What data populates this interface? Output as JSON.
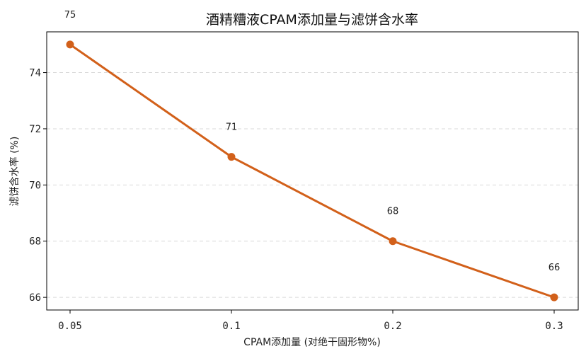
{
  "chart_data": {
    "type": "line",
    "title": "酒精糟液CPAM添加量与滤饼含水率",
    "xlabel": "CPAM添加量 (对绝干固形物%)",
    "ylabel": "滤饼含水率 (%)",
    "categories": [
      "0.05",
      "0.1",
      "0.2",
      "0.3"
    ],
    "series": [
      {
        "values": [
          75,
          71,
          68,
          66
        ],
        "color": "#d2601a"
      }
    ],
    "data_labels": [
      "75",
      "71",
      "68",
      "66"
    ],
    "ylim": [
      65.55,
      75.45
    ],
    "yticks": [
      66,
      68,
      70,
      72,
      74
    ],
    "ytick_labels": [
      "66",
      "68",
      "70",
      "72",
      "74"
    ],
    "grid": {
      "y": true,
      "x": false,
      "style": "dashed"
    },
    "legend": "none"
  }
}
